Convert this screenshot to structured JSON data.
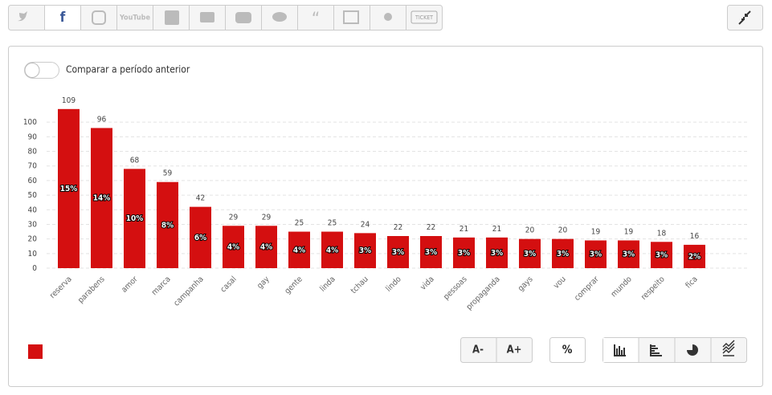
{
  "toolbar": {
    "youtube": "YouTube",
    "ticket": "TICKET"
  },
  "toggle_label": "Comparar a período anterior",
  "buttons": {
    "font_smaller": "A-",
    "font_larger": "A+",
    "percent": "%"
  },
  "chart_data": {
    "type": "bar",
    "color": "#d40f10",
    "categories": [
      "reserva",
      "parabens",
      "amor",
      "marca",
      "campanha",
      "casal",
      "gay",
      "gente",
      "linda",
      "tchau",
      "lindo",
      "vida",
      "pessoas",
      "propaganda",
      "gays",
      "vou",
      "comprar",
      "mundo",
      "respeito",
      "fica"
    ],
    "values": [
      109,
      96,
      68,
      59,
      42,
      29,
      29,
      25,
      25,
      24,
      22,
      22,
      21,
      21,
      20,
      20,
      19,
      19,
      18,
      16
    ],
    "share_labels": [
      "15%",
      "14%",
      "10%",
      "8%",
      "6%",
      "4%",
      "4%",
      "4%",
      "4%",
      "3%",
      "3%",
      "3%",
      "3%",
      "3%",
      "3%",
      "3%",
      "3%",
      "3%",
      "3%",
      "2%"
    ],
    "ylim": [
      0,
      110
    ],
    "yticks": [
      0,
      10,
      20,
      30,
      40,
      50,
      60,
      70,
      80,
      90,
      100
    ],
    "grid": true
  }
}
